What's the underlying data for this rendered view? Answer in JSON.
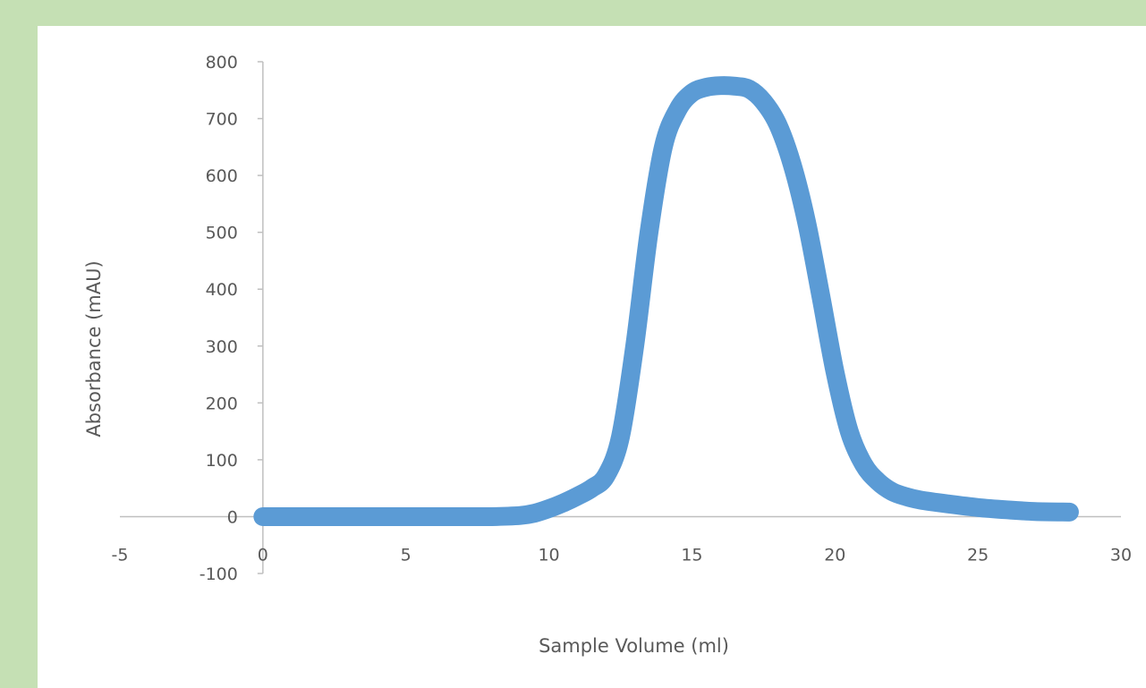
{
  "chart_data": {
    "type": "line",
    "xlabel": "Sample Volume (ml)",
    "ylabel": "Absorbance (mAU)",
    "xlim": [
      -5,
      30
    ],
    "ylim": [
      -100,
      800
    ],
    "xticks": [
      -5,
      0,
      5,
      10,
      15,
      20,
      25,
      30
    ],
    "yticks": [
      -100,
      0,
      100,
      200,
      300,
      400,
      500,
      600,
      700,
      800
    ],
    "grid": false,
    "legend": "none",
    "series": [
      {
        "color": "#5b9bd5",
        "x": [
          0,
          1,
          2,
          3,
          4,
          5,
          6,
          7,
          8,
          9,
          9.5,
          10,
          10.5,
          11,
          11.5,
          12,
          12.5,
          13,
          13.5,
          14,
          14.5,
          15,
          15.5,
          16,
          16.5,
          17,
          17.5,
          18,
          18.5,
          19,
          19.5,
          20,
          20.5,
          21,
          21.5,
          22,
          22.5,
          23,
          24,
          25,
          26,
          27,
          28.2
        ],
        "y": [
          0,
          0,
          0,
          0,
          0,
          0,
          0,
          0,
          0,
          2,
          6,
          14,
          24,
          36,
          50,
          72,
          140,
          300,
          500,
          650,
          715,
          745,
          755,
          758,
          757,
          752,
          730,
          690,
          620,
          520,
          390,
          255,
          150,
          92,
          62,
          44,
          35,
          29,
          22,
          16,
          12,
          9,
          8
        ]
      }
    ]
  }
}
